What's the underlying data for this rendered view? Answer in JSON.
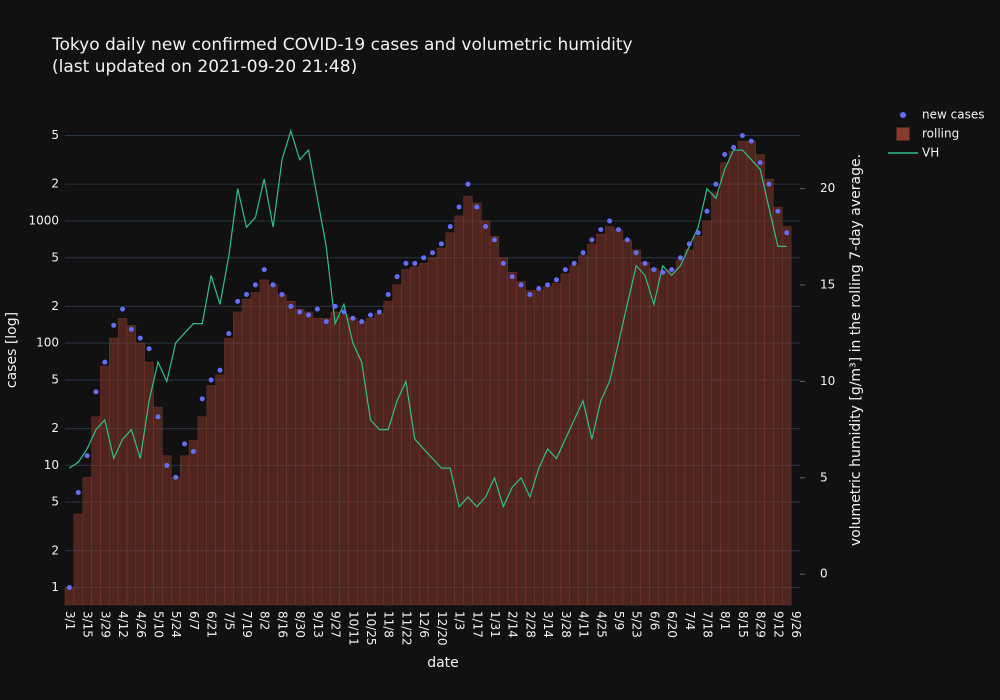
{
  "chart_data": {
    "type": "combo",
    "title": "Tokyo daily new confirmed COVID-19 cases and volumetric humidity",
    "subtitle": "(last updated on 2021-09-20 21:48)",
    "x_label": "date",
    "y_label": "cases [log]",
    "y2_label": "volumetric humidity [g/m³] in the rolling 7-day average.",
    "log_y": true,
    "grid": true,
    "legend": "top-right",
    "categories": [
      "3/1",
      null,
      "3/15",
      null,
      "3/29",
      null,
      "4/12",
      null,
      "4/26",
      null,
      "5/10",
      null,
      "5/24",
      null,
      "6/7",
      null,
      "6/21",
      null,
      "7/5",
      null,
      "7/19",
      null,
      "8/2",
      null,
      "8/16",
      null,
      "8/30",
      null,
      "9/13",
      null,
      "9/27",
      null,
      "10/11",
      null,
      "10/25",
      null,
      "11/8",
      null,
      "11/22",
      null,
      "12/6",
      null,
      "12/20",
      null,
      "1/3",
      null,
      "1/17",
      null,
      "1/31",
      null,
      "2/14",
      null,
      "2/28",
      null,
      "3/14",
      null,
      "3/28",
      null,
      "4/11",
      null,
      "4/25",
      null,
      "5/9",
      null,
      "5/23",
      null,
      "6/6",
      null,
      "6/20",
      null,
      "7/4",
      null,
      "7/18",
      null,
      "8/1",
      null,
      "8/15",
      null,
      "8/29",
      null,
      "9/12",
      null,
      "9/26"
    ],
    "ylim": [
      0.72,
      6100
    ],
    "yticks": [
      1,
      2,
      5,
      10,
      {
        "value": 20,
        "label": "2"
      },
      {
        "value": 50,
        "label": "5"
      },
      100,
      {
        "value": 200,
        "label": "2"
      },
      {
        "value": 500,
        "label": "5"
      },
      1000,
      {
        "value": 2000,
        "label": "2"
      },
      {
        "value": 5000,
        "label": "5"
      }
    ],
    "y2lim": [
      -1.6,
      23.3
    ],
    "y2ticks": [
      0,
      5,
      10,
      15,
      20
    ],
    "series": [
      {
        "name": "rolling",
        "type": "bar",
        "color": "#8b3a2e",
        "values": [
          1,
          4,
          8,
          25,
          65,
          110,
          160,
          140,
          100,
          70,
          30,
          12,
          8,
          12,
          16,
          25,
          45,
          55,
          110,
          180,
          230,
          260,
          330,
          300,
          250,
          220,
          190,
          180,
          160,
          160,
          180,
          170,
          160,
          150,
          160,
          175,
          220,
          300,
          400,
          420,
          450,
          500,
          600,
          800,
          1100,
          1600,
          1400,
          1000,
          750,
          500,
          380,
          320,
          270,
          270,
          290,
          310,
          370,
          430,
          520,
          650,
          780,
          900,
          850,
          700,
          580,
          460,
          410,
          390,
          400,
          480,
          580,
          750,
          1000,
          1700,
          3000,
          3700,
          4500,
          4500,
          3500,
          2200,
          1300,
          900,
          null
        ]
      },
      {
        "name": "new cases",
        "type": "scatter",
        "color": "#636efa",
        "values": [
          1,
          6,
          12,
          40,
          70,
          140,
          190,
          130,
          110,
          90,
          25,
          10,
          8,
          15,
          13,
          35,
          50,
          60,
          120,
          220,
          250,
          300,
          400,
          300,
          250,
          200,
          180,
          170,
          190,
          150,
          200,
          180,
          160,
          150,
          170,
          180,
          250,
          350,
          450,
          450,
          500,
          550,
          650,
          900,
          1300,
          2000,
          1300,
          900,
          700,
          450,
          350,
          300,
          250,
          280,
          300,
          330,
          400,
          450,
          550,
          700,
          850,
          1000,
          850,
          700,
          550,
          450,
          400,
          380,
          400,
          500,
          650,
          800,
          1200,
          2000,
          3500,
          4000,
          5000,
          4500,
          3000,
          2000,
          1200,
          800,
          null
        ]
      },
      {
        "name": "VH",
        "type": "line",
        "color": "#2fbf8a",
        "axis": "y2",
        "values": [
          5.5,
          5.8,
          6.5,
          7.5,
          8,
          6,
          7,
          7.5,
          6,
          9,
          11,
          10,
          12,
          12.5,
          13,
          13,
          15.5,
          14,
          16.5,
          20,
          18,
          18.5,
          20.5,
          18,
          21.5,
          23,
          21.5,
          22,
          19.5,
          17,
          13,
          14,
          12,
          11,
          8,
          7.5,
          7.5,
          9,
          10,
          7,
          6.5,
          6,
          5.5,
          5.5,
          3.5,
          4,
          3.5,
          4,
          5,
          3.5,
          4.5,
          5,
          4,
          5.5,
          6.5,
          6,
          7,
          8,
          9,
          7,
          9,
          10,
          12,
          14,
          16,
          15.5,
          14,
          16,
          15.5,
          16,
          17,
          18,
          20,
          19.5,
          21,
          22,
          22,
          21.5,
          21,
          19,
          17,
          17,
          null
        ]
      }
    ]
  }
}
